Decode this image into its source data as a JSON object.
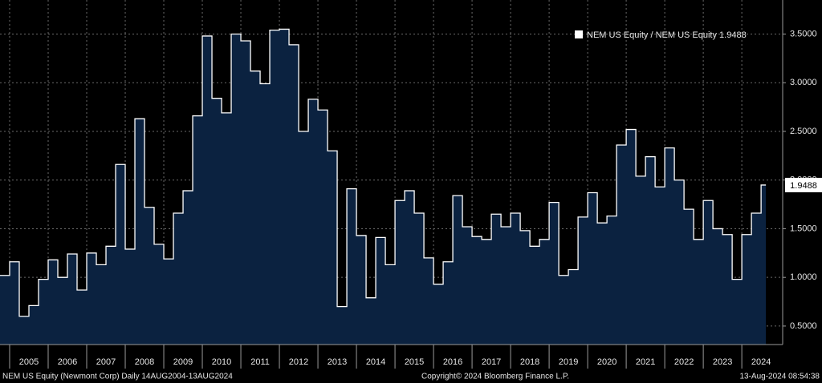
{
  "chart_data": {
    "type": "step-area",
    "legend_position": "upper right",
    "grid": true,
    "footer_left": "NEM US Equity (Newmont Corp)  Daily 14AUG2004-13AUG2024",
    "footer_center": "Copyright© 2024 Bloomberg Finance L.P.",
    "footer_right": "13-Aug-2024 08:54:38",
    "xlim": [
      2004.75,
      2025.06
    ],
    "xticks": [
      2005,
      2006,
      2007,
      2008,
      2009,
      2010,
      2011,
      2012,
      2013,
      2014,
      2015,
      2016,
      2017,
      2018,
      2019,
      2020,
      2021,
      2022,
      2023,
      2024
    ],
    "ylim": [
      0.31,
      3.85
    ],
    "yticks": [
      {
        "value": 0.5,
        "label": "0.5000"
      },
      {
        "value": 1,
        "label": "1.0000"
      },
      {
        "value": 1.5,
        "label": "1.5000"
      },
      {
        "value": 2,
        "label": "2.0000"
      },
      {
        "value": 2.5,
        "label": "2.5000"
      },
      {
        "value": 3,
        "label": "3.0000"
      },
      {
        "value": 3.5,
        "label": "3.5000"
      }
    ],
    "series": [
      {
        "name": "NEM US Equity / NEM US Equity 1.9488",
        "color": "#ffffff",
        "fill": "#0b2240",
        "x": [
          2004.75,
          2005,
          2005.25,
          2005.5,
          2005.75,
          2006,
          2006.25,
          2006.5,
          2006.75,
          2007,
          2007.25,
          2007.5,
          2007.75,
          2008,
          2008.25,
          2008.5,
          2008.75,
          2009,
          2009.25,
          2009.5,
          2009.75,
          2010,
          2010.25,
          2010.5,
          2010.75,
          2011,
          2011.25,
          2011.5,
          2011.75,
          2012,
          2012.25,
          2012.5,
          2012.75,
          2013,
          2013.25,
          2013.5,
          2013.75,
          2014,
          2014.25,
          2014.5,
          2014.75,
          2015,
          2015.25,
          2015.5,
          2015.75,
          2016,
          2016.25,
          2016.5,
          2016.75,
          2017,
          2017.25,
          2017.5,
          2017.75,
          2018,
          2018.25,
          2018.5,
          2018.75,
          2019,
          2019.25,
          2019.5,
          2019.75,
          2020,
          2020.25,
          2020.5,
          2020.75,
          2021,
          2021.25,
          2021.5,
          2021.75,
          2022,
          2022.25,
          2022.5,
          2022.75,
          2023,
          2023.25,
          2023.5,
          2023.75,
          2024,
          2024.25,
          2024.5
        ],
        "values": [
          1.02,
          1.16,
          0.6,
          0.71,
          0.98,
          1.18,
          1.0,
          1.24,
          0.87,
          1.25,
          1.13,
          1.32,
          2.16,
          1.29,
          2.63,
          1.72,
          1.34,
          1.19,
          1.66,
          1.89,
          2.66,
          3.48,
          2.84,
          2.69,
          3.5,
          3.43,
          3.12,
          2.99,
          3.54,
          3.55,
          3.39,
          2.5,
          2.83,
          2.72,
          2.3,
          0.7,
          1.91,
          1.43,
          0.79,
          1.41,
          1.13,
          1.79,
          1.89,
          1.66,
          1.2,
          0.93,
          1.16,
          1.84,
          1.52,
          1.42,
          1.39,
          1.65,
          1.52,
          1.66,
          1.48,
          1.32,
          1.39,
          1.77,
          1.02,
          1.08,
          1.62,
          1.87,
          1.56,
          1.63,
          2.36,
          2.52,
          2.04,
          2.24,
          1.93,
          2.33,
          2.0,
          1.7,
          1.39,
          1.79,
          1.5,
          1.44,
          0.98,
          1.44,
          1.66,
          1.9488
        ]
      }
    ]
  }
}
